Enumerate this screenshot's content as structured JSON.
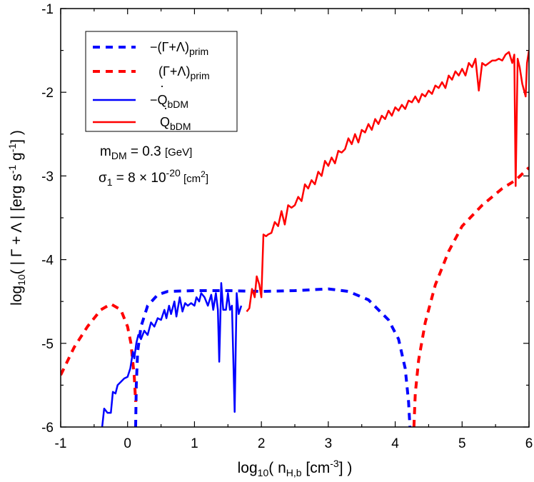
{
  "chart_data": {
    "type": "line",
    "xlabel": "log10( nH,b [cm-3] )",
    "ylabel": "log10( | Γ + Λ | [erg s-1 g-1] )",
    "xlim": [
      -1,
      6
    ],
    "ylim": [
      -6,
      -1
    ],
    "x_ticks": [
      "-1",
      "0",
      "1",
      "2",
      "3",
      "4",
      "5",
      "6"
    ],
    "y_ticks": [
      "-6",
      "-5",
      "-4",
      "-3",
      "-2",
      "-1"
    ],
    "legend_position": "top-left",
    "legend": [
      "−(Γ+Λ)prim",
      "(Γ+Λ)prim",
      "−Q̇bDM",
      "Q̇bDM"
    ],
    "annotations": [
      "mDM = 0.3 [GeV]",
      "σ1 = 8 × 10-20 [cm2]"
    ],
    "colors": {
      "blue": "#0000ff",
      "red": "#ff0000"
    },
    "series": [
      {
        "name": "−(Γ+Λ)prim",
        "color": "#0000ff",
        "style": "dashed",
        "points": [
          [
            0.12,
            -6.0
          ],
          [
            0.13,
            -5.5
          ],
          [
            0.15,
            -5.1
          ],
          [
            0.2,
            -4.8
          ],
          [
            0.3,
            -4.55
          ],
          [
            0.45,
            -4.42
          ],
          [
            0.6,
            -4.38
          ],
          [
            1.0,
            -4.37
          ],
          [
            1.5,
            -4.37
          ],
          [
            2.0,
            -4.38
          ],
          [
            2.5,
            -4.37
          ],
          [
            3.0,
            -4.35
          ],
          [
            3.3,
            -4.38
          ],
          [
            3.6,
            -4.48
          ],
          [
            3.9,
            -4.72
          ],
          [
            4.05,
            -4.95
          ],
          [
            4.15,
            -5.3
          ],
          [
            4.2,
            -5.7
          ],
          [
            4.22,
            -6.0
          ]
        ]
      },
      {
        "name": "(Γ+Λ)prim",
        "color": "#ff0000",
        "style": "dashed",
        "points": [
          [
            -1.0,
            -5.38
          ],
          [
            -0.8,
            -5.05
          ],
          [
            -0.6,
            -4.8
          ],
          [
            -0.4,
            -4.6
          ],
          [
            -0.25,
            -4.53
          ],
          [
            -0.1,
            -4.6
          ],
          [
            0.0,
            -4.8
          ],
          [
            0.05,
            -5.0
          ],
          [
            0.1,
            -5.4
          ],
          [
            0.12,
            -5.7
          ]
        ]
      },
      {
        "name": "(Γ+Λ)prim",
        "color": "#ff0000",
        "style": "dashed",
        "points": [
          [
            4.28,
            -6.0
          ],
          [
            4.3,
            -5.6
          ],
          [
            4.35,
            -5.2
          ],
          [
            4.45,
            -4.75
          ],
          [
            4.6,
            -4.3
          ],
          [
            4.8,
            -3.9
          ],
          [
            5.0,
            -3.6
          ],
          [
            5.3,
            -3.35
          ],
          [
            5.6,
            -3.15
          ],
          [
            5.8,
            -3.05
          ],
          [
            6.0,
            -2.9
          ]
        ]
      },
      {
        "name": "−Q̇bDM",
        "color": "#0000ff",
        "style": "solid",
        "points": [
          [
            -0.38,
            -6.0
          ],
          [
            -0.35,
            -5.78
          ],
          [
            -0.3,
            -5.83
          ],
          [
            -0.25,
            -5.83
          ],
          [
            -0.22,
            -5.58
          ],
          [
            -0.18,
            -5.6
          ],
          [
            -0.15,
            -5.5
          ],
          [
            -0.1,
            -5.46
          ],
          [
            -0.05,
            -5.42
          ],
          [
            0.0,
            -5.4
          ],
          [
            0.04,
            -5.3
          ],
          [
            0.08,
            -5.1
          ],
          [
            0.1,
            -5.18
          ],
          [
            0.13,
            -5.0
          ],
          [
            0.16,
            -4.9
          ],
          [
            0.2,
            -4.95
          ],
          [
            0.25,
            -4.85
          ],
          [
            0.3,
            -4.9
          ],
          [
            0.35,
            -4.75
          ],
          [
            0.4,
            -4.8
          ],
          [
            0.45,
            -4.7
          ],
          [
            0.5,
            -4.72
          ],
          [
            0.55,
            -4.6
          ],
          [
            0.58,
            -4.7
          ],
          [
            0.62,
            -4.55
          ],
          [
            0.65,
            -4.65
          ],
          [
            0.7,
            -4.5
          ],
          [
            0.73,
            -4.68
          ],
          [
            0.78,
            -4.45
          ],
          [
            0.82,
            -4.62
          ],
          [
            0.86,
            -4.52
          ],
          [
            0.9,
            -4.55
          ],
          [
            0.95,
            -4.52
          ],
          [
            1.0,
            -4.55
          ],
          [
            1.03,
            -4.45
          ],
          [
            1.07,
            -4.5
          ],
          [
            1.1,
            -4.4
          ],
          [
            1.15,
            -4.45
          ],
          [
            1.2,
            -4.55
          ],
          [
            1.25,
            -4.42
          ],
          [
            1.28,
            -4.6
          ],
          [
            1.32,
            -4.4
          ],
          [
            1.35,
            -4.6
          ],
          [
            1.37,
            -5.22
          ],
          [
            1.4,
            -4.28
          ],
          [
            1.43,
            -4.6
          ],
          [
            1.47,
            -4.6
          ],
          [
            1.5,
            -4.4
          ],
          [
            1.53,
            -4.6
          ],
          [
            1.56,
            -4.55
          ],
          [
            1.6,
            -5.82
          ],
          [
            1.63,
            -4.4
          ],
          [
            1.66,
            -4.65
          ],
          [
            1.7,
            -4.55
          ]
        ]
      },
      {
        "name": "Q̇bDM",
        "color": "#ff0000",
        "style": "solid",
        "points": [
          [
            1.78,
            -4.62
          ],
          [
            1.82,
            -4.58
          ],
          [
            1.86,
            -4.35
          ],
          [
            1.9,
            -4.45
          ],
          [
            1.93,
            -4.2
          ],
          [
            1.97,
            -4.3
          ],
          [
            2.0,
            -4.45
          ],
          [
            2.03,
            -3.7
          ],
          [
            2.07,
            -3.72
          ],
          [
            2.1,
            -3.7
          ],
          [
            2.15,
            -3.68
          ],
          [
            2.2,
            -3.55
          ],
          [
            2.25,
            -3.6
          ],
          [
            2.3,
            -3.42
          ],
          [
            2.35,
            -3.58
          ],
          [
            2.4,
            -3.35
          ],
          [
            2.45,
            -3.38
          ],
          [
            2.5,
            -3.35
          ],
          [
            2.55,
            -3.25
          ],
          [
            2.6,
            -3.3
          ],
          [
            2.65,
            -3.1
          ],
          [
            2.7,
            -3.15
          ],
          [
            2.75,
            -3.05
          ],
          [
            2.8,
            -3.1
          ],
          [
            2.85,
            -2.95
          ],
          [
            2.9,
            -3.0
          ],
          [
            2.95,
            -2.82
          ],
          [
            3.0,
            -2.88
          ],
          [
            3.05,
            -2.78
          ],
          [
            3.1,
            -2.85
          ],
          [
            3.15,
            -2.7
          ],
          [
            3.2,
            -2.72
          ],
          [
            3.25,
            -2.68
          ],
          [
            3.3,
            -2.55
          ],
          [
            3.35,
            -2.62
          ],
          [
            3.4,
            -2.5
          ],
          [
            3.45,
            -2.6
          ],
          [
            3.5,
            -2.45
          ],
          [
            3.55,
            -2.48
          ],
          [
            3.6,
            -2.38
          ],
          [
            3.65,
            -2.45
          ],
          [
            3.7,
            -2.32
          ],
          [
            3.75,
            -2.38
          ],
          [
            3.8,
            -2.28
          ],
          [
            3.85,
            -2.32
          ],
          [
            3.9,
            -2.22
          ],
          [
            3.95,
            -2.28
          ],
          [
            4.0,
            -2.18
          ],
          [
            4.05,
            -2.22
          ],
          [
            4.1,
            -2.15
          ],
          [
            4.15,
            -2.2
          ],
          [
            4.2,
            -2.1
          ],
          [
            4.25,
            -2.12
          ],
          [
            4.3,
            -2.05
          ],
          [
            4.35,
            -2.12
          ],
          [
            4.4,
            -2.02
          ],
          [
            4.45,
            -2.05
          ],
          [
            4.5,
            -1.98
          ],
          [
            4.55,
            -2.02
          ],
          [
            4.6,
            -1.92
          ],
          [
            4.65,
            -1.95
          ],
          [
            4.7,
            -1.88
          ],
          [
            4.75,
            -1.95
          ],
          [
            4.8,
            -1.8
          ],
          [
            4.85,
            -1.85
          ],
          [
            4.9,
            -1.75
          ],
          [
            4.95,
            -1.8
          ],
          [
            5.0,
            -1.72
          ],
          [
            5.05,
            -1.8
          ],
          [
            5.1,
            -1.65
          ],
          [
            5.15,
            -1.7
          ],
          [
            5.2,
            -1.6
          ],
          [
            5.25,
            -1.98
          ],
          [
            5.3,
            -1.65
          ],
          [
            5.35,
            -1.68
          ],
          [
            5.4,
            -1.65
          ],
          [
            5.45,
            -1.62
          ],
          [
            5.5,
            -1.62
          ],
          [
            5.55,
            -1.6
          ],
          [
            5.6,
            -1.62
          ],
          [
            5.65,
            -1.55
          ],
          [
            5.7,
            -1.52
          ],
          [
            5.75,
            -1.65
          ],
          [
            5.78,
            -1.55
          ],
          [
            5.8,
            -3.12
          ],
          [
            5.83,
            -1.6
          ],
          [
            5.86,
            -1.7
          ],
          [
            5.9,
            -1.9
          ],
          [
            5.95,
            -2.05
          ],
          [
            5.97,
            -1.65
          ],
          [
            6.0,
            -1.5
          ]
        ]
      }
    ]
  }
}
